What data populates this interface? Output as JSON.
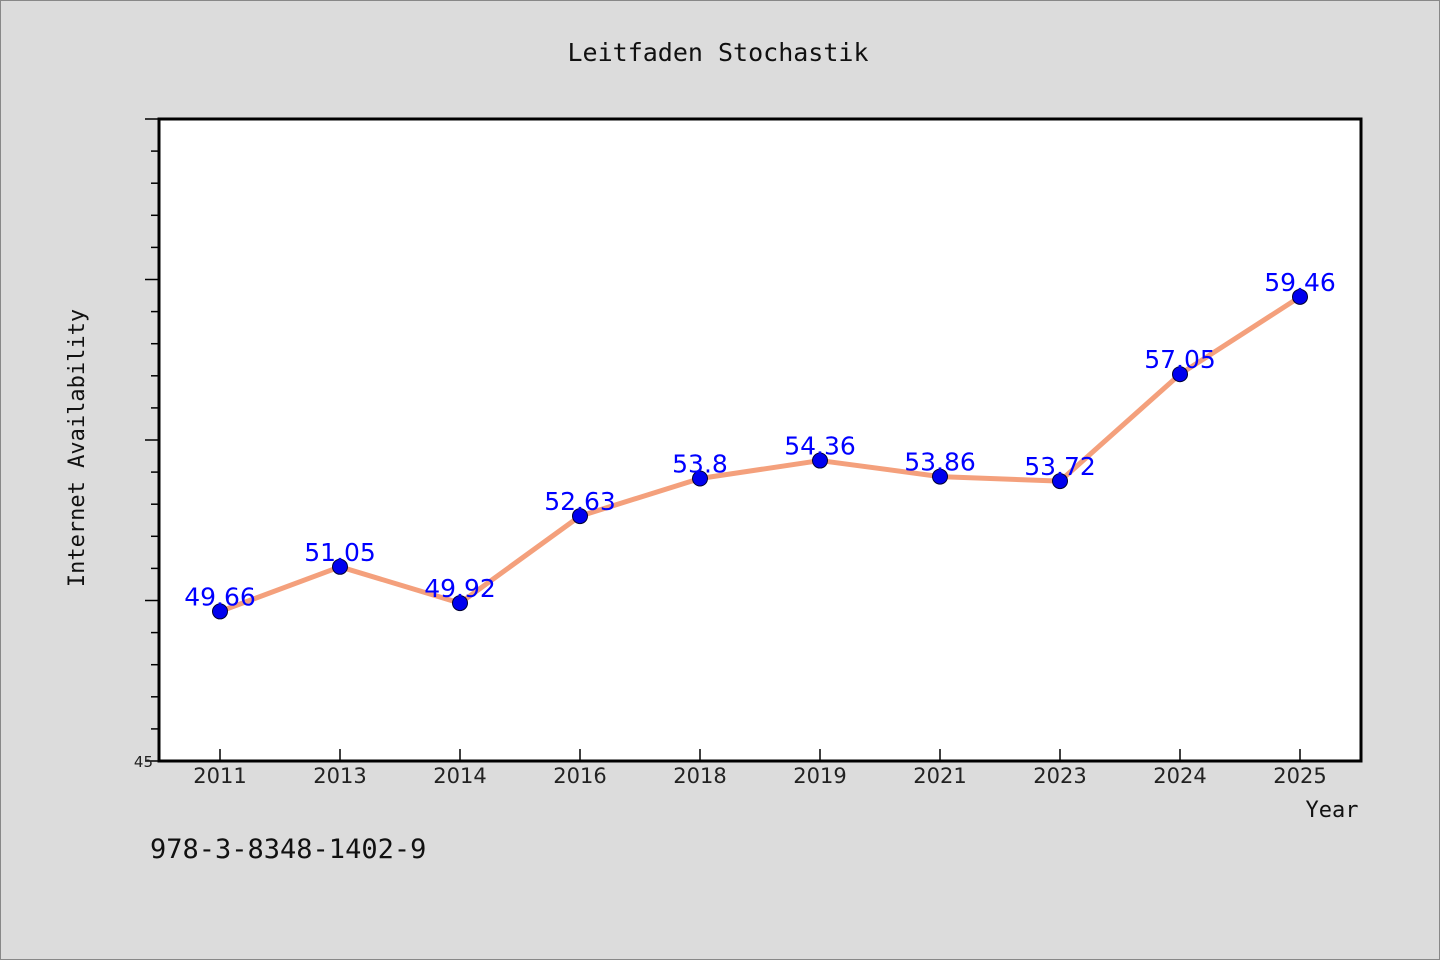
{
  "chart_data": {
    "type": "line",
    "title": "Leitfaden Stochastik",
    "xlabel": "Year",
    "ylabel": "Internet Availability",
    "categories": [
      "2011",
      "2013",
      "2014",
      "2016",
      "2018",
      "2019",
      "2021",
      "2023",
      "2024",
      "2025"
    ],
    "series": [
      {
        "values": [
          49.66,
          51.05,
          49.92,
          52.63,
          53.8,
          54.36,
          53.86,
          53.72,
          57.05,
          59.46
        ]
      }
    ],
    "data_labels": [
      "49.66",
      "51.05",
      "49.92",
      "52.63",
      "53.8",
      "54.36",
      "53.86",
      "53.72",
      "57.05",
      "59.46"
    ],
    "y_tick_labels": [
      "45"
    ],
    "ylim": [
      45,
      65
    ],
    "grid": false,
    "line_color": "#f4a07c",
    "marker_color": "#0000ee",
    "label_color": "#0000ff"
  },
  "footnote": "978-3-8348-1402-9"
}
